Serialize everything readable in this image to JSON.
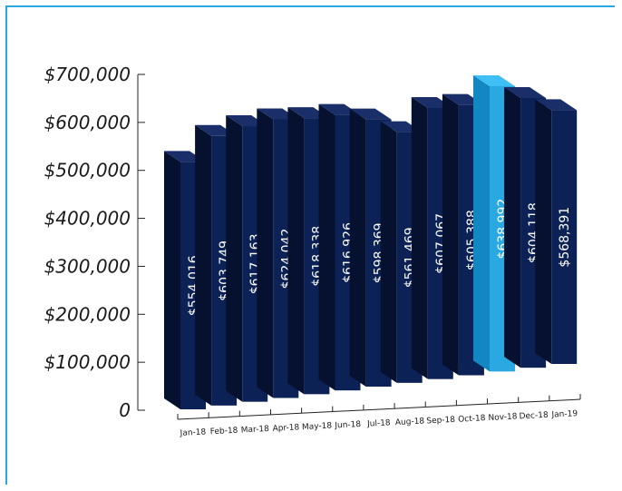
{
  "chart_data": {
    "type": "bar",
    "style": "3d",
    "categories": [
      "Jan-18",
      "Feb-18",
      "Mar-18",
      "Apr-18",
      "May-18",
      "Jun-18",
      "Jul-18",
      "Aug-18",
      "Sep-18",
      "Oct-18",
      "Nov-18",
      "Dec-18",
      "Jan-19"
    ],
    "values": [
      554016,
      603749,
      617163,
      624042,
      618338,
      616926,
      598369,
      561469,
      607067,
      605388,
      638992,
      604118,
      568391
    ],
    "value_labels": [
      "$554,016",
      "$603,749",
      "$617,163",
      "$624,042",
      "$618,338",
      "$616,926",
      "$598,369",
      "$561,469",
      "$607,067",
      "$605,388",
      "$638,992",
      "$604,118",
      "$568,391"
    ],
    "y_tick_labels": [
      "0",
      "$100,000",
      "$200,000",
      "$300,000",
      "$400,000",
      "$500,000",
      "$600,000",
      "$700,000"
    ],
    "y_tick_values": [
      0,
      100000,
      200000,
      300000,
      400000,
      500000,
      600000,
      700000
    ],
    "ylim": [
      0,
      700000
    ],
    "highlight_index": 10,
    "colors": {
      "bar_front": "#0c2155",
      "bar_side": "#05112f",
      "bar_top": "#1a2f6a",
      "highlight_front": "#2aa8e2",
      "highlight_side": "#1287c2",
      "highlight_top": "#3ec0f5",
      "frame": "#29a9e0",
      "axis": "#222222"
    },
    "grid": false,
    "legend": "none"
  }
}
